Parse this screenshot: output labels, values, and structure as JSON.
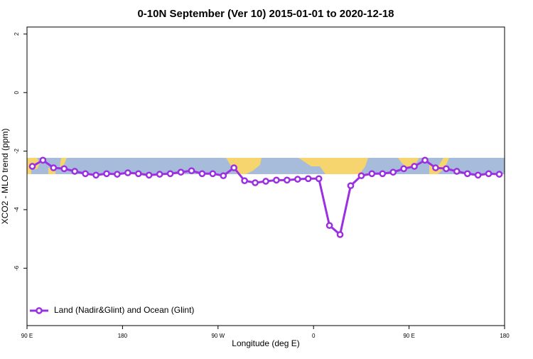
{
  "chart_data": {
    "type": "line",
    "title": "0-10N September (Ver 10)   2015-01-01 to 2020-12-18",
    "x_label": "Longitude (deg E)",
    "y_label": "XCO2 - MLO trend (ppm)",
    "x": [
      95,
      105,
      115,
      125,
      135,
      145,
      155,
      165,
      175,
      185,
      195,
      205,
      215,
      225,
      235,
      245,
      255,
      265,
      275,
      285,
      295,
      305,
      315,
      325,
      335,
      345,
      355,
      365,
      375,
      385,
      395,
      405,
      415,
      425,
      435,
      445,
      455,
      465,
      475,
      485,
      495,
      505,
      515,
      525,
      535
    ],
    "series": [
      {
        "name": "Land (Nadir&Glint) and Ocean (Glint)",
        "color": "#9b30e0",
        "values": [
          -2.52,
          -2.31,
          -2.57,
          -2.6,
          -2.69,
          -2.77,
          -2.82,
          -2.77,
          -2.79,
          -2.74,
          -2.77,
          -2.82,
          -2.79,
          -2.77,
          -2.72,
          -2.67,
          -2.77,
          -2.77,
          -2.84,
          -2.57,
          -3.01,
          -3.08,
          -3.03,
          -2.99,
          -2.99,
          -2.96,
          -2.94,
          -2.94,
          -4.54,
          -4.85,
          -3.18,
          -2.84,
          -2.77,
          -2.77,
          -2.72,
          -2.6,
          -2.52,
          -2.31,
          -2.57,
          -2.6,
          -2.69,
          -2.77,
          -2.82,
          -2.77,
          -2.79
        ]
      }
    ],
    "xlim": [
      90,
      540
    ],
    "ylim": [
      -7.96,
      2.24
    ],
    "xticks": [
      {
        "value": 90,
        "label": "90 E"
      },
      180,
      {
        "value": 270,
        "label": "90 W"
      },
      {
        "value": 360,
        "label": "0"
      },
      {
        "value": 450,
        "label": "90 E"
      },
      {
        "value": 540,
        "label": "180"
      }
    ],
    "yticks": [
      2,
      0,
      -2,
      -4,
      -6
    ],
    "legend": "bottomleft"
  }
}
